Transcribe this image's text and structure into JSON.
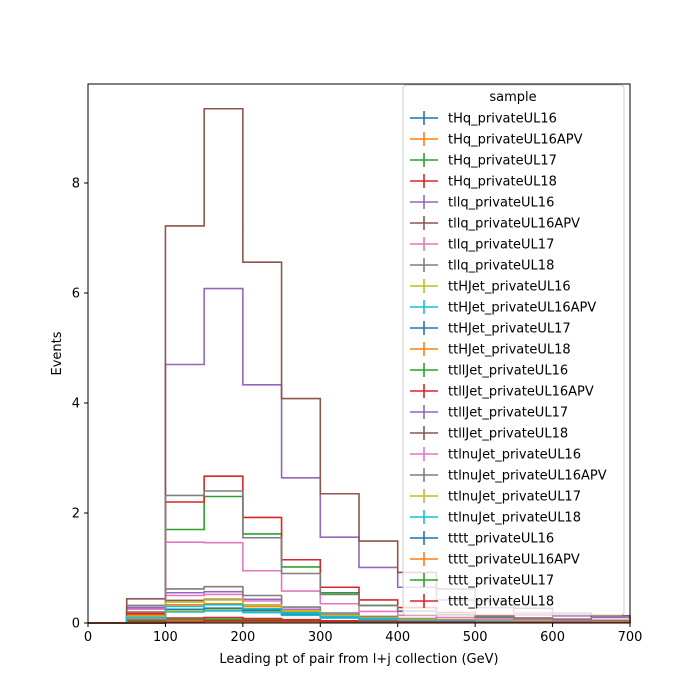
{
  "chart_data": {
    "type": "histogram-step",
    "xlabel": "Leading pt of pair from l+j collection (GeV)",
    "ylabel": "Events",
    "xlim": [
      0,
      700
    ],
    "ylim": [
      0,
      9.8
    ],
    "x_ticks": [
      0,
      100,
      200,
      300,
      400,
      500,
      600,
      700
    ],
    "y_ticks": [
      0,
      2,
      4,
      6,
      8
    ],
    "bin_edges": [
      0,
      50,
      100,
      150,
      200,
      250,
      300,
      350,
      400,
      450,
      500,
      550,
      600,
      650,
      700
    ],
    "legend": {
      "title": "sample",
      "placement": "top-right"
    },
    "series": [
      {
        "name": "tHq_privateUL16",
        "color": "#1f77b4",
        "values": [
          0,
          0.02,
          0.05,
          0.06,
          0.05,
          0.04,
          0.03,
          0.02,
          0.02,
          0.01,
          0.01,
          0.01,
          0.01,
          0.01
        ]
      },
      {
        "name": "tHq_privateUL16APV",
        "color": "#ff7f0e",
        "values": [
          0,
          0.02,
          0.05,
          0.06,
          0.05,
          0.04,
          0.03,
          0.02,
          0.02,
          0.01,
          0.01,
          0.01,
          0.01,
          0.01
        ]
      },
      {
        "name": "tHq_privateUL17",
        "color": "#2ca02c",
        "values": [
          0,
          0.03,
          0.06,
          0.07,
          0.06,
          0.05,
          0.03,
          0.02,
          0.02,
          0.01,
          0.01,
          0.01,
          0.01,
          0.01
        ]
      },
      {
        "name": "tHq_privateUL18",
        "color": "#d62728",
        "values": [
          0,
          0.04,
          0.09,
          0.1,
          0.08,
          0.06,
          0.04,
          0.03,
          0.02,
          0.02,
          0.01,
          0.01,
          0.01,
          0.01
        ]
      },
      {
        "name": "tllq_privateUL16",
        "color": "#9467bd",
        "values": [
          0,
          0.28,
          0.55,
          0.57,
          0.43,
          0.25,
          0.15,
          0.1,
          0.07,
          0.05,
          0.04,
          0.03,
          0.02,
          0.02
        ]
      },
      {
        "name": "tllq_privateUL16APV",
        "color": "#8c564b",
        "values": [
          0,
          0.2,
          0.41,
          0.43,
          0.33,
          0.19,
          0.12,
          0.08,
          0.05,
          0.04,
          0.03,
          0.02,
          0.02,
          0.01
        ]
      },
      {
        "name": "tllq_privateUL17",
        "color": "#e377c2",
        "values": [
          0,
          0.25,
          0.5,
          0.52,
          0.4,
          0.23,
          0.14,
          0.09,
          0.06,
          0.05,
          0.04,
          0.03,
          0.02,
          0.02
        ]
      },
      {
        "name": "tllq_privateUL18",
        "color": "#7f7f7f",
        "values": [
          0,
          0.32,
          0.62,
          0.66,
          0.5,
          0.29,
          0.18,
          0.12,
          0.08,
          0.06,
          0.05,
          0.04,
          0.03,
          0.02
        ]
      },
      {
        "name": "ttHJet_privateUL16",
        "color": "#bcbd22",
        "values": [
          0,
          0.1,
          0.22,
          0.24,
          0.21,
          0.15,
          0.1,
          0.07,
          0.05,
          0.04,
          0.03,
          0.02,
          0.02,
          0.01
        ]
      },
      {
        "name": "ttHJet_privateUL16APV",
        "color": "#17becf",
        "values": [
          0,
          0.09,
          0.2,
          0.22,
          0.19,
          0.14,
          0.09,
          0.06,
          0.05,
          0.04,
          0.03,
          0.02,
          0.02,
          0.01
        ]
      },
      {
        "name": "ttHJet_privateUL17",
        "color": "#1f77b4",
        "values": [
          0,
          0.11,
          0.25,
          0.27,
          0.23,
          0.17,
          0.11,
          0.08,
          0.06,
          0.04,
          0.03,
          0.02,
          0.02,
          0.01
        ]
      },
      {
        "name": "ttHJet_privateUL18",
        "color": "#ff7f0e",
        "values": [
          0,
          0.14,
          0.33,
          0.35,
          0.3,
          0.22,
          0.14,
          0.1,
          0.07,
          0.05,
          0.04,
          0.03,
          0.02,
          0.02
        ]
      },
      {
        "name": "ttllJet_privateUL16",
        "color": "#2ca02c",
        "values": [
          0,
          0.06,
          1.7,
          2.3,
          1.62,
          1.02,
          0.55,
          0.32,
          0.22,
          0.15,
          0.1,
          0.07,
          0.05,
          0.04
        ]
      },
      {
        "name": "ttllJet_privateUL16APV",
        "color": "#d62728",
        "values": [
          0,
          0.17,
          2.2,
          2.67,
          1.92,
          1.15,
          0.65,
          0.42,
          0.28,
          0.19,
          0.13,
          0.09,
          0.07,
          0.05
        ]
      },
      {
        "name": "ttllJet_privateUL17",
        "color": "#9467bd",
        "values": [
          0,
          0.28,
          4.7,
          6.08,
          4.33,
          2.64,
          1.56,
          1.01,
          0.65,
          0.42,
          0.28,
          0.18,
          0.13,
          0.1
        ]
      },
      {
        "name": "ttllJet_privateUL18",
        "color": "#8c564b",
        "values": [
          0,
          0.44,
          7.22,
          9.35,
          6.56,
          4.08,
          2.35,
          1.49,
          0.92,
          0.62,
          0.4,
          0.27,
          0.18,
          0.13
        ]
      },
      {
        "name": "ttlnuJet_privateUL16",
        "color": "#e377c2",
        "values": [
          0,
          0.08,
          1.47,
          1.46,
          0.95,
          0.58,
          0.35,
          0.21,
          0.14,
          0.1,
          0.07,
          0.05,
          0.04,
          0.03
        ]
      },
      {
        "name": "ttlnuJet_privateUL16APV",
        "color": "#7f7f7f",
        "values": [
          0,
          0.1,
          2.32,
          2.4,
          1.55,
          0.9,
          0.52,
          0.32,
          0.21,
          0.15,
          0.11,
          0.08,
          0.06,
          0.05
        ]
      },
      {
        "name": "ttlnuJet_privateUL17",
        "color": "#bcbd22",
        "values": [
          0,
          0.12,
          0.38,
          0.42,
          0.33,
          0.22,
          0.14,
          0.09,
          0.06,
          0.05,
          0.04,
          0.03,
          0.02,
          0.02
        ]
      },
      {
        "name": "ttlnuJet_privateUL18",
        "color": "#17becf",
        "values": [
          0,
          0.1,
          0.3,
          0.33,
          0.26,
          0.18,
          0.11,
          0.08,
          0.05,
          0.04,
          0.03,
          0.02,
          0.02,
          0.01
        ]
      },
      {
        "name": "tttt_privateUL16",
        "color": "#1f77b4",
        "values": [
          0,
          0,
          0.01,
          0.02,
          0.02,
          0.02,
          0.02,
          0.02,
          0.01,
          0.01,
          0.01,
          0.01,
          0.01,
          0.01
        ]
      },
      {
        "name": "tttt_privateUL16APV",
        "color": "#ff7f0e",
        "values": [
          0,
          0,
          0.01,
          0.02,
          0.02,
          0.02,
          0.02,
          0.02,
          0.01,
          0.01,
          0.01,
          0.01,
          0.01,
          0.01
        ]
      },
      {
        "name": "tttt_privateUL17",
        "color": "#2ca02c",
        "values": [
          0,
          0,
          0.01,
          0.03,
          0.03,
          0.03,
          0.02,
          0.02,
          0.02,
          0.01,
          0.01,
          0.01,
          0.01,
          0.01
        ]
      },
      {
        "name": "tttt_privateUL18",
        "color": "#d62728",
        "values": [
          0,
          0,
          0.02,
          0.04,
          0.04,
          0.04,
          0.03,
          0.03,
          0.02,
          0.02,
          0.01,
          0.01,
          0.01,
          0.01
        ]
      }
    ]
  }
}
